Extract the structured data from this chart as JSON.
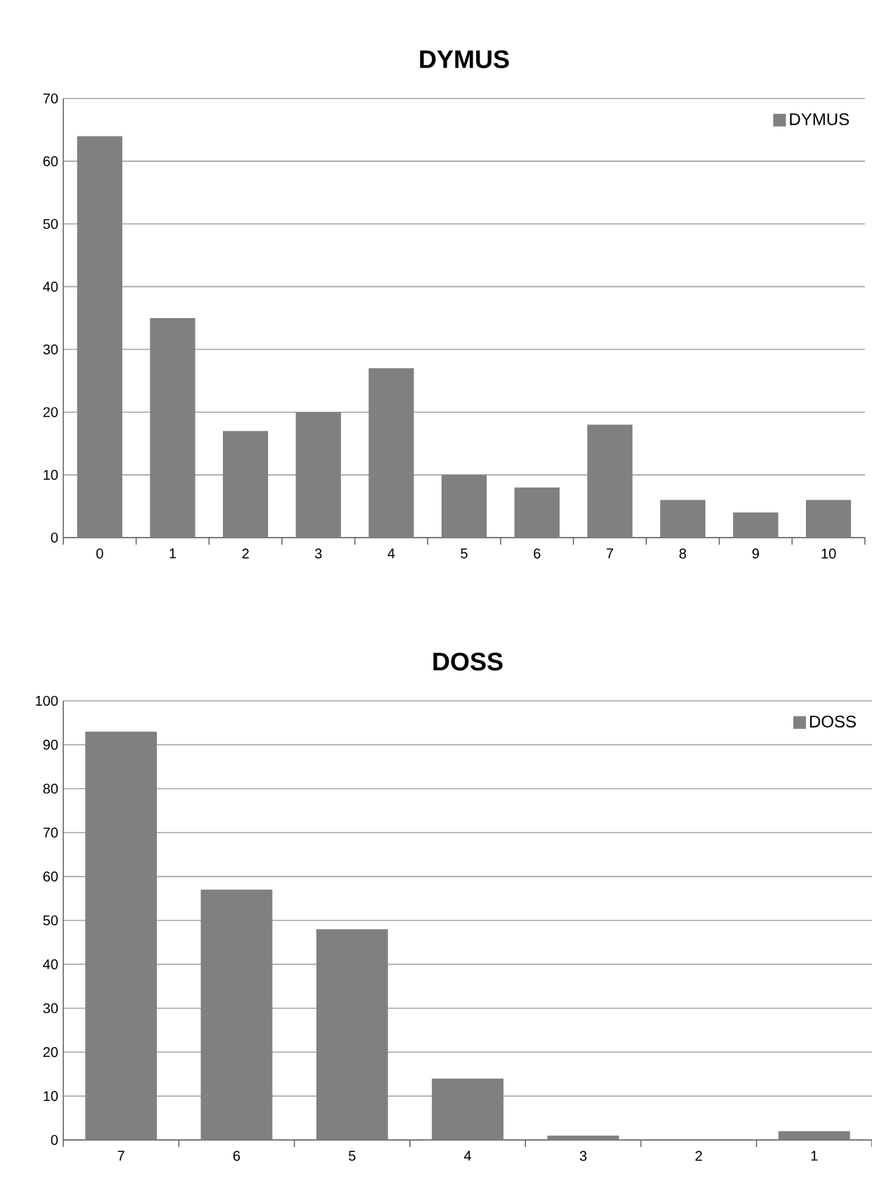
{
  "chart_data": [
    {
      "type": "bar",
      "title": "DYMUS",
      "categories": [
        "0",
        "1",
        "2",
        "3",
        "4",
        "5",
        "6",
        "7",
        "8",
        "9",
        "10"
      ],
      "series": [
        {
          "name": "DYMUS",
          "color": "#808080",
          "values": [
            64,
            35,
            17,
            20,
            27,
            10,
            8,
            18,
            6,
            4,
            6
          ]
        }
      ],
      "ylim": [
        0,
        70
      ],
      "yticks": [
        0,
        10,
        20,
        30,
        40,
        50,
        60,
        70
      ],
      "grid": "y",
      "legend": "top right"
    },
    {
      "type": "bar",
      "title": "DOSS",
      "categories": [
        "7",
        "6",
        "5",
        "4",
        "3",
        "2",
        "1"
      ],
      "series": [
        {
          "name": "DOSS",
          "color": "#808080",
          "values": [
            93,
            57,
            48,
            14,
            1,
            0,
            2
          ]
        }
      ],
      "ylim": [
        0,
        100
      ],
      "yticks": [
        0,
        10,
        20,
        30,
        40,
        50,
        60,
        70,
        80,
        90,
        100
      ],
      "grid": "y",
      "legend": "top right"
    }
  ]
}
